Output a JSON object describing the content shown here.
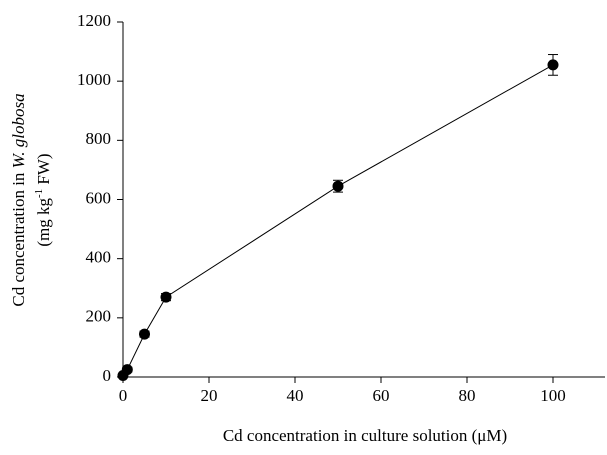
{
  "chart_data": {
    "type": "line",
    "xlabel": "Cd concentration in culture solution (μM)",
    "ylabel": {
      "line1": [
        "Cd concentration in ",
        "W. globosa"
      ],
      "line2": [
        "(mg kg",
        "-1",
        " FW)"
      ]
    },
    "x": [
      0,
      1,
      5,
      10,
      50,
      100
    ],
    "series": [
      {
        "color": "#000000",
        "values": [
          5,
          25,
          145,
          270,
          645,
          1055
        ],
        "errors": [
          5,
          8,
          10,
          12,
          20,
          35
        ]
      }
    ],
    "xlim": [
      0,
      112
    ],
    "xticks": [
      0,
      20,
      40,
      60,
      80,
      100
    ],
    "ylim": [
      0,
      1200
    ],
    "yticks": [
      0,
      200,
      400,
      600,
      800,
      1000,
      1200
    ],
    "grid": false
  }
}
